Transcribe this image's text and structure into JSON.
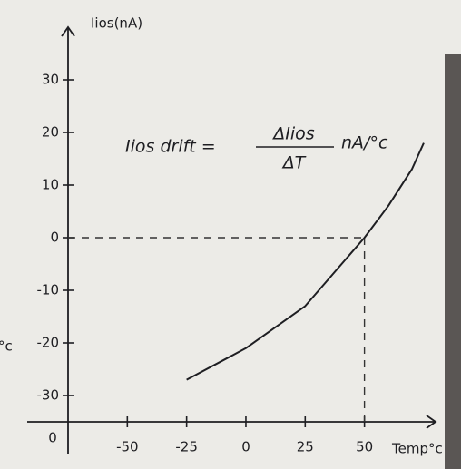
{
  "chart_data": {
    "type": "line",
    "y_axis_label": "Iios(nA)",
    "x_axis_label": "Temp°c",
    "origin_label": "0",
    "left_edge_text": "°c",
    "annotation": {
      "left": "Iios drift =",
      "numerator": "ΔIios",
      "denominator": "ΔT",
      "unit": "nA/°c"
    },
    "x": [
      -25,
      0,
      25,
      50,
      60,
      70,
      75
    ],
    "series": [
      {
        "values": [
          -27,
          -21,
          -13,
          0,
          6,
          13,
          18
        ],
        "color": "#1e1e22"
      }
    ],
    "reference_point": {
      "x": 50,
      "y": 0
    },
    "xlim": [
      -75,
      80
    ],
    "ylim": [
      -35,
      40
    ],
    "xticks": [
      -50,
      -25,
      0,
      25,
      50
    ],
    "yticks": [
      30,
      20,
      10,
      0,
      -10,
      -20,
      -30
    ]
  }
}
